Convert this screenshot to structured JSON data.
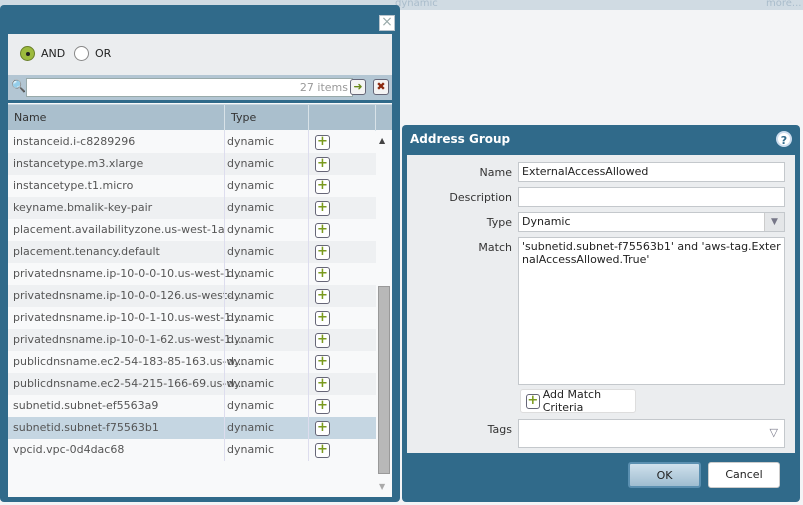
{
  "background": {
    "type_text": "dynamic",
    "more_link": "more..."
  },
  "selector_dialog": {
    "close_icon": "close-icon",
    "operators": [
      {
        "label": "AND",
        "selected": true
      },
      {
        "label": "OR",
        "selected": false
      }
    ],
    "search": {
      "value": "",
      "count": "27 items"
    },
    "columns": [
      "Name",
      "Type",
      ""
    ],
    "rows": [
      {
        "name": "instanceid.i-c8289296",
        "type": "dynamic"
      },
      {
        "name": "instancetype.m3.xlarge",
        "type": "dynamic"
      },
      {
        "name": "instancetype.t1.micro",
        "type": "dynamic"
      },
      {
        "name": "keyname.bmalik-key-pair",
        "type": "dynamic"
      },
      {
        "name": "placement.availabilityzone.us-west-1a",
        "type": "dynamic"
      },
      {
        "name": "placement.tenancy.default",
        "type": "dynamic"
      },
      {
        "name": "privatednsname.ip-10-0-0-10.us-west-1....",
        "type": "dynamic"
      },
      {
        "name": "privatednsname.ip-10-0-0-126.us-west-...",
        "type": "dynamic"
      },
      {
        "name": "privatednsname.ip-10-0-1-10.us-west-1....",
        "type": "dynamic"
      },
      {
        "name": "privatednsname.ip-10-0-1-62.us-west-1....",
        "type": "dynamic"
      },
      {
        "name": "publicdnsname.ec2-54-183-85-163.us-w...",
        "type": "dynamic"
      },
      {
        "name": "publicdnsname.ec2-54-215-166-69.us-w...",
        "type": "dynamic"
      },
      {
        "name": "subnetid.subnet-ef5563a9",
        "type": "dynamic"
      },
      {
        "name": "subnetid.subnet-f75563b1",
        "type": "dynamic",
        "selected": true
      },
      {
        "name": "vpcid.vpc-0d4dac68",
        "type": "dynamic"
      }
    ]
  },
  "address_group": {
    "title": "Address Group",
    "name_label": "Name",
    "name_value": "ExternalAccessAllowed",
    "description_label": "Description",
    "description_value": "",
    "type_label": "Type",
    "type_value": "Dynamic",
    "match_label": "Match",
    "match_value": "'subnetid.subnet-f75563b1' and 'aws-tag.ExternalAccessAllowed.True'",
    "add_match_label": "Add Match Criteria",
    "tags_label": "Tags",
    "tags_value": "",
    "ok_label": "OK",
    "cancel_label": "Cancel"
  },
  "colors": {
    "dialog": "#306a8a",
    "accent_green": "#9cba3d",
    "selected_row": "#c5d6e2"
  }
}
